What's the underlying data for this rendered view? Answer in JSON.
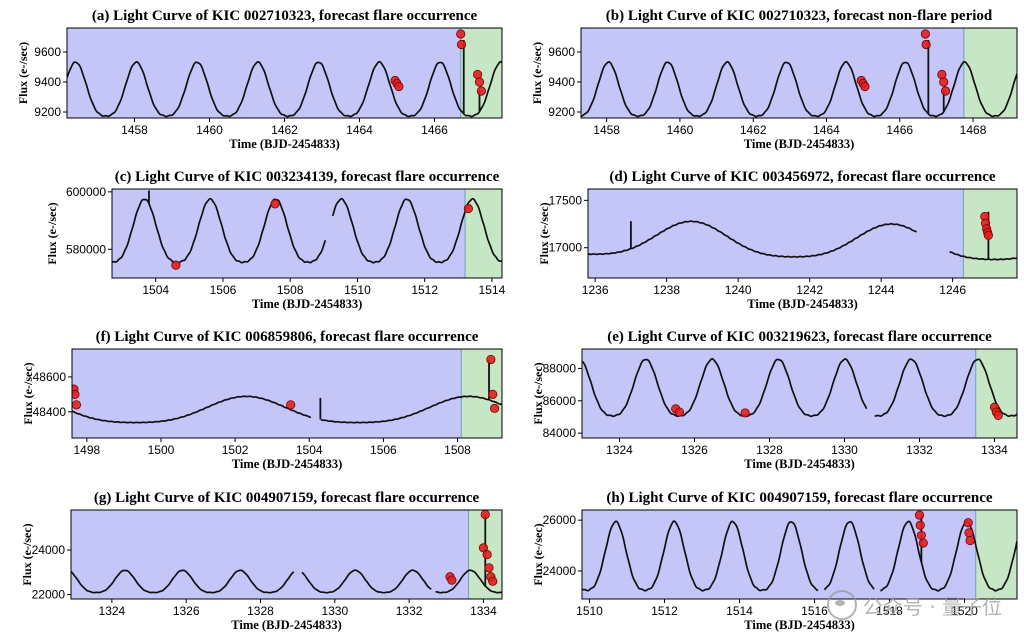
{
  "watermark": {
    "text": "公众号 · 量子位"
  },
  "chart_data": [
    {
      "id": "a",
      "type": "line",
      "title": "(a) Light Curve of KIC 002710323, forecast flare occurrence",
      "xlabel": "Time (BJD-2454833)",
      "ylabel": "Flux (e-/sec)",
      "xlim": [
        1456.2,
        1467.8
      ],
      "ylim": [
        9160,
        9760
      ],
      "xticks": [
        1458,
        1460,
        1462,
        1464,
        1466
      ],
      "yticks": [
        9200,
        9400,
        9600
      ],
      "shade": {
        "x0": 1456.2,
        "x1": 1466.7,
        "x2": 1467.8
      },
      "curve": {
        "base": 9320,
        "amp": 180,
        "period": 1.62,
        "phase": 1458.05,
        "ofs": 0,
        "tilt": 0
      },
      "gaps": [],
      "spikes": [
        [
          1466.78,
          9680
        ],
        [
          1467.2,
          9350
        ]
      ],
      "flare_points": [
        [
          1464.95,
          9410
        ],
        [
          1465.0,
          9390
        ],
        [
          1465.05,
          9370
        ],
        [
          1466.7,
          9720
        ],
        [
          1466.72,
          9650
        ],
        [
          1467.15,
          9450
        ],
        [
          1467.2,
          9400
        ],
        [
          1467.25,
          9340
        ]
      ]
    },
    {
      "id": "b",
      "type": "line",
      "title": "(b) Light Curve of KIC 002710323, forecast non-flare period",
      "xlabel": "Time (BJD-2454833)",
      "ylabel": "Flux (e-/sec)",
      "xlim": [
        1457.3,
        1469.2
      ],
      "ylim": [
        9160,
        9760
      ],
      "xticks": [
        1458,
        1460,
        1462,
        1464,
        1466,
        1468
      ],
      "yticks": [
        9200,
        9400,
        9600
      ],
      "shade": {
        "x0": 1457.3,
        "x1": 1467.75,
        "x2": 1469.2
      },
      "curve": {
        "base": 9320,
        "amp": 180,
        "period": 1.62,
        "phase": 1458.05,
        "ofs": 0,
        "tilt": 0
      },
      "gaps": [],
      "spikes": [
        [
          1466.78,
          9680
        ],
        [
          1467.2,
          9350
        ]
      ],
      "flare_points": [
        [
          1464.95,
          9410
        ],
        [
          1465.0,
          9390
        ],
        [
          1465.05,
          9370
        ],
        [
          1466.7,
          9720
        ],
        [
          1466.72,
          9650
        ],
        [
          1467.15,
          9450
        ],
        [
          1467.2,
          9400
        ],
        [
          1467.25,
          9340
        ]
      ]
    },
    {
      "id": "c",
      "type": "line",
      "title": "(c) Light Curve of KIC 003234139, forecast flare occurrence",
      "xlabel": "Time (BJD-2454833)",
      "ylabel": "Flux (e-/sec)",
      "xlim": [
        1502.7,
        1514.3
      ],
      "ylim": [
        570000,
        601000
      ],
      "xticks": [
        1504,
        1506,
        1508,
        1510,
        1512,
        1514
      ],
      "yticks": [
        580000,
        600000
      ],
      "shade": {
        "x0": 1502.7,
        "x1": 1513.2,
        "x2": 1514.3
      },
      "curve": {
        "base": 584500,
        "amp": 11000,
        "period": 1.95,
        "phase": 1505.62,
        "ofs": 0,
        "tilt": 0
      },
      "gaps": [
        [
          1509.05,
          1509.25
        ]
      ],
      "spikes": [
        [
          1503.8,
          600500
        ]
      ],
      "flare_points": [
        [
          1504.6,
          574500
        ],
        [
          1507.55,
          595800
        ],
        [
          1513.3,
          594200
        ]
      ]
    },
    {
      "id": "d",
      "type": "line",
      "title": "(d) Light Curve of KIC 003456972, forecast flare occurrence",
      "xlabel": "Time (BJD-2454833)",
      "ylabel": "Flux (e-/sec)",
      "xlim": [
        1235.8,
        1247.8
      ],
      "ylim": [
        16680,
        17620
      ],
      "xticks": [
        1236,
        1238,
        1240,
        1242,
        1244,
        1246
      ],
      "yticks": [
        17000,
        17500
      ],
      "shade": {
        "x0": 1235.8,
        "x1": 1246.3,
        "x2": 1247.8
      },
      "curve": {
        "base": 17080,
        "amp": 180,
        "period": 5.6,
        "phase": 1238.7,
        "ofs": 0,
        "tilt": -5
      },
      "gaps": [
        [
          1245.0,
          1245.9
        ]
      ],
      "spikes": [
        [
          1237.0,
          17280
        ],
        [
          1247.0,
          17380
        ]
      ],
      "flare_points": [
        [
          1246.9,
          17330
        ],
        [
          1246.92,
          17260
        ],
        [
          1246.95,
          17200
        ],
        [
          1246.98,
          17160
        ],
        [
          1247.0,
          17130
        ]
      ]
    },
    {
      "id": "f",
      "type": "line",
      "title": "(f) Light Curve of KIC 006859806, forecast flare occurrence",
      "xlabel": "Time (BJD-2454833)",
      "ylabel": "Flux (e-/sec)",
      "xlim": [
        1497.6,
        1509.2
      ],
      "ylim": [
        48250,
        48760
      ],
      "xticks": [
        1498,
        1500,
        1502,
        1504,
        1506,
        1508
      ],
      "yticks": [
        48400,
        48600
      ],
      "shade": {
        "x0": 1497.6,
        "x1": 1508.1,
        "x2": 1509.2
      },
      "curve": {
        "base": 48400,
        "amp": 75,
        "period": 6.0,
        "phase": 1502.3,
        "ofs": 0,
        "tilt": 0
      },
      "gaps": [
        [
          1504.05,
          1504.3
        ]
      ],
      "spikes": [
        [
          1504.3,
          48480
        ],
        [
          1508.85,
          48700
        ]
      ],
      "flare_points": [
        [
          1497.65,
          48530
        ],
        [
          1497.68,
          48500
        ],
        [
          1497.72,
          48440
        ],
        [
          1503.5,
          48440
        ],
        [
          1508.9,
          48700
        ],
        [
          1508.95,
          48500
        ],
        [
          1509.0,
          48420
        ]
      ]
    },
    {
      "id": "e",
      "type": "line",
      "title": "(e) Light Curve of KIC 003219623, forecast flare occurrence",
      "xlabel": "Time (BJD-2454833)",
      "ylabel": "Flux (e-/sec)",
      "xlim": [
        1323.0,
        1334.6
      ],
      "ylim": [
        83700,
        89200
      ],
      "xticks": [
        1324,
        1326,
        1328,
        1330,
        1332,
        1334
      ],
      "yticks": [
        84000,
        86000,
        88000
      ],
      "shade": {
        "x0": 1323.0,
        "x1": 1333.5,
        "x2": 1334.6
      },
      "curve": {
        "base": 86500,
        "amp": 1750,
        "period": 1.77,
        "phase": 1324.7,
        "ofs": 0,
        "tilt": 0
      },
      "gaps": [
        [
          1330.6,
          1330.8
        ]
      ],
      "spikes": [],
      "flare_points": [
        [
          1325.5,
          85500
        ],
        [
          1325.6,
          85300
        ],
        [
          1327.35,
          85250
        ],
        [
          1334.0,
          85600
        ],
        [
          1334.05,
          85300
        ],
        [
          1334.1,
          85100
        ]
      ]
    },
    {
      "id": "g",
      "type": "line",
      "title": "(g) Light Curve of KIC 004907159, forecast flare occurrence",
      "xlabel": "Time (BJD-2454833)",
      "ylabel": "Flux (e-/sec)",
      "xlim": [
        1322.9,
        1334.5
      ],
      "ylim": [
        21800,
        25800
      ],
      "xticks": [
        1324,
        1326,
        1328,
        1330,
        1332,
        1334
      ],
      "yticks": [
        22000,
        24000
      ],
      "shade": {
        "x0": 1322.9,
        "x1": 1333.6,
        "x2": 1334.5
      },
      "curve": {
        "base": 22500,
        "amp": 500,
        "period": 1.55,
        "phase": 1324.35,
        "ofs": 0,
        "tilt": 0
      },
      "gaps": [
        [
          1328.9,
          1329.1
        ],
        [
          1332.6,
          1332.7
        ]
      ],
      "spikes": [
        [
          1334.05,
          25600
        ]
      ],
      "flare_points": [
        [
          1333.1,
          22800
        ],
        [
          1333.15,
          22650
        ],
        [
          1334.0,
          24100
        ],
        [
          1334.05,
          25600
        ],
        [
          1334.1,
          23800
        ],
        [
          1334.15,
          23200
        ],
        [
          1334.2,
          22800
        ],
        [
          1334.25,
          22600
        ]
      ]
    },
    {
      "id": "h",
      "type": "line",
      "title": "(h) Light Curve of KIC 004907159, forecast flare occurrence",
      "xlabel": "Time (BJD-2454833)",
      "ylabel": "Flux (e-/sec)",
      "xlim": [
        1509.8,
        1521.4
      ],
      "ylim": [
        22900,
        26400
      ],
      "xticks": [
        1510,
        1512,
        1514,
        1516,
        1518,
        1520
      ],
      "yticks": [
        24000,
        26000
      ],
      "shade": {
        "x0": 1509.8,
        "x1": 1520.3,
        "x2": 1521.4
      },
      "curve": {
        "base": 24350,
        "amp": 1350,
        "period": 1.56,
        "phase": 1510.7,
        "ofs": 0,
        "tilt": 0
      },
      "gaps": [
        [
          1516.1,
          1516.25
        ],
        [
          1517.6,
          1517.75
        ]
      ],
      "spikes": [
        [
          1518.85,
          26200
        ]
      ],
      "flare_points": [
        [
          1518.8,
          26200
        ],
        [
          1518.82,
          25800
        ],
        [
          1518.85,
          25400
        ],
        [
          1518.9,
          25100
        ],
        [
          1520.1,
          25900
        ],
        [
          1520.12,
          25500
        ],
        [
          1520.15,
          25200
        ]
      ]
    }
  ]
}
